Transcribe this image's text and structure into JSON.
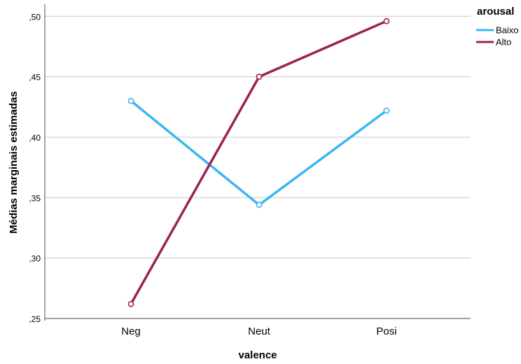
{
  "chart_data": {
    "type": "line",
    "categories": [
      "Neg",
      "Neut",
      "Posi"
    ],
    "series": [
      {
        "name": "Baixo",
        "values": [
          0.43,
          0.344,
          0.422
        ],
        "color": "#3db5f5"
      },
      {
        "name": "Alto",
        "values": [
          0.262,
          0.45,
          0.496
        ],
        "color": "#9b2257"
      }
    ],
    "xlabel": "valence",
    "ylabel": "Médias marginais estimadas",
    "ylim": [
      0.25,
      0.51
    ],
    "yticks": [
      0.25,
      0.3,
      0.35,
      0.4,
      0.45,
      0.5
    ],
    "ytick_labels": [
      ",25",
      ",30",
      ",35",
      ",40",
      ",45",
      ",50"
    ],
    "grid": "horizontal",
    "legend_title": "arousal",
    "legend_position": "top-right",
    "markers": "hollow-circle"
  }
}
